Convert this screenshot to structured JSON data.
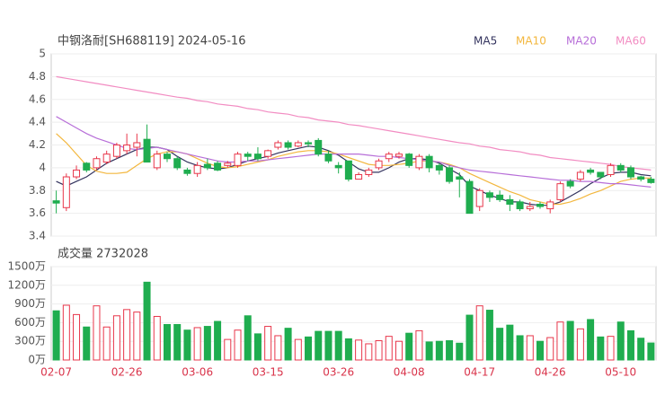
{
  "chart_data": [
    {
      "type": "candlestick",
      "title": "中钢洛耐[SH688119] 2024-05-16",
      "up_color": "#e8364a",
      "down_color": "#1fad4f",
      "open": [
        3.71,
        3.65,
        3.92,
        4.04,
        4.0,
        4.05,
        4.1,
        4.15,
        4.18,
        4.25,
        4.0,
        4.12,
        4.08,
        3.98,
        3.95,
        4.03,
        4.04,
        4.02,
        4.02,
        4.12,
        4.12,
        4.1,
        4.18,
        4.22,
        4.19,
        4.22,
        4.24,
        4.12,
        4.02,
        4.06,
        3.9,
        3.94,
        4.0,
        4.08,
        4.1,
        4.12,
        4.0,
        4.1,
        4.02,
        4.0,
        3.92,
        3.88,
        3.66,
        3.78,
        3.76,
        3.72,
        3.7,
        3.64,
        3.68,
        3.64,
        3.72,
        3.88,
        3.9,
        3.98,
        3.96,
        3.94,
        4.02,
        4.0,
        3.92,
        3.9
      ],
      "high": [
        3.8,
        3.95,
        4.02,
        4.05,
        4.1,
        4.15,
        4.22,
        4.3,
        4.3,
        4.38,
        4.15,
        4.14,
        4.1,
        4.0,
        4.05,
        4.08,
        4.06,
        4.06,
        4.14,
        4.14,
        4.18,
        4.16,
        4.24,
        4.24,
        4.24,
        4.24,
        4.26,
        4.15,
        4.05,
        4.06,
        3.96,
        4.0,
        4.08,
        4.14,
        4.14,
        4.13,
        4.12,
        4.12,
        4.04,
        4.02,
        3.96,
        3.9,
        3.82,
        3.8,
        3.8,
        3.76,
        3.72,
        3.7,
        3.7,
        3.72,
        3.88,
        3.9,
        3.98,
        4.0,
        3.96,
        4.04,
        4.04,
        4.02,
        3.93,
        3.92
      ],
      "low": [
        3.6,
        3.62,
        3.9,
        3.96,
        3.98,
        4.03,
        4.08,
        4.12,
        4.1,
        4.05,
        3.98,
        4.05,
        3.98,
        3.93,
        3.92,
        3.98,
        3.97,
        4.0,
        4.0,
        4.06,
        4.06,
        4.08,
        4.16,
        4.16,
        4.18,
        4.18,
        4.1,
        4.04,
        3.95,
        3.88,
        3.9,
        3.92,
        3.98,
        4.05,
        4.08,
        4.0,
        3.98,
        3.96,
        3.94,
        3.86,
        3.74,
        3.6,
        3.62,
        3.7,
        3.7,
        3.62,
        3.62,
        3.62,
        3.64,
        3.6,
        3.7,
        3.82,
        3.88,
        3.94,
        3.9,
        3.92,
        3.96,
        3.9,
        3.88,
        3.86
      ],
      "close": [
        3.69,
        3.92,
        3.98,
        3.98,
        4.08,
        4.12,
        4.2,
        4.2,
        4.22,
        4.05,
        4.12,
        4.08,
        4.0,
        3.95,
        4.02,
        4.0,
        3.98,
        4.04,
        4.12,
        4.1,
        4.08,
        4.15,
        4.22,
        4.18,
        4.22,
        4.21,
        4.12,
        4.06,
        4.0,
        3.9,
        3.94,
        3.98,
        4.06,
        4.12,
        4.12,
        4.02,
        4.1,
        4.0,
        3.98,
        3.88,
        3.9,
        3.6,
        3.8,
        3.74,
        3.72,
        3.68,
        3.64,
        3.66,
        3.66,
        3.7,
        3.86,
        3.84,
        3.96,
        3.96,
        3.92,
        4.02,
        3.98,
        3.92,
        3.9,
        3.87
      ],
      "series": [
        {
          "name": "MA5",
          "color": "#33335e",
          "values": [
            3.88,
            3.84,
            3.88,
            3.92,
            3.98,
            4.04,
            4.08,
            4.12,
            4.16,
            4.18,
            4.18,
            4.16,
            4.1,
            4.05,
            4.02,
            4.0,
            3.99,
            4.0,
            4.03,
            4.06,
            4.08,
            4.1,
            4.13,
            4.15,
            4.17,
            4.19,
            4.18,
            4.15,
            4.11,
            4.05,
            3.99,
            3.96,
            3.96,
            4.0,
            4.05,
            4.08,
            4.08,
            4.07,
            4.04,
            3.99,
            3.94,
            3.84,
            3.8,
            3.76,
            3.73,
            3.7,
            3.7,
            3.68,
            3.67,
            3.67,
            3.7,
            3.75,
            3.8,
            3.86,
            3.91,
            3.95,
            3.96,
            3.96,
            3.94,
            3.93
          ]
        },
        {
          "name": "MA10",
          "color": "#f3b73e",
          "values": [
            4.3,
            4.22,
            4.12,
            4.02,
            3.97,
            3.95,
            3.95,
            3.96,
            4.02,
            4.08,
            4.12,
            4.14,
            4.14,
            4.12,
            4.08,
            4.04,
            4.01,
            4.0,
            4.01,
            4.03,
            4.05,
            4.07,
            4.1,
            4.12,
            4.14,
            4.15,
            4.15,
            4.14,
            4.12,
            4.09,
            4.06,
            4.03,
            4.02,
            4.02,
            4.03,
            4.04,
            4.06,
            4.06,
            4.05,
            4.03,
            4.0,
            3.95,
            3.91,
            3.87,
            3.83,
            3.79,
            3.76,
            3.72,
            3.7,
            3.68,
            3.68,
            3.7,
            3.73,
            3.77,
            3.8,
            3.84,
            3.88,
            3.9,
            3.91,
            3.91
          ]
        },
        {
          "name": "MA20",
          "color": "#b76ed8",
          "values": [
            4.45,
            4.4,
            4.35,
            4.3,
            4.26,
            4.23,
            4.2,
            4.17,
            4.16,
            4.17,
            4.18,
            4.16,
            4.14,
            4.12,
            4.1,
            4.08,
            4.06,
            4.05,
            4.05,
            4.06,
            4.06,
            4.07,
            4.08,
            4.09,
            4.1,
            4.11,
            4.12,
            4.12,
            4.12,
            4.12,
            4.12,
            4.11,
            4.1,
            4.1,
            4.09,
            4.08,
            4.07,
            4.06,
            4.05,
            4.02,
            4.0,
            3.98,
            3.97,
            3.96,
            3.95,
            3.94,
            3.93,
            3.92,
            3.91,
            3.9,
            3.89,
            3.89,
            3.88,
            3.88,
            3.87,
            3.86,
            3.86,
            3.85,
            3.84,
            3.83
          ]
        },
        {
          "name": "MA60",
          "color": "#f28cc2",
          "values": [
            4.8,
            4.785,
            4.77,
            4.755,
            4.74,
            4.725,
            4.71,
            4.695,
            4.68,
            4.665,
            4.65,
            4.635,
            4.62,
            4.61,
            4.59,
            4.58,
            4.56,
            4.55,
            4.54,
            4.52,
            4.51,
            4.49,
            4.48,
            4.47,
            4.45,
            4.44,
            4.42,
            4.41,
            4.4,
            4.38,
            4.37,
            4.355,
            4.34,
            4.325,
            4.31,
            4.295,
            4.28,
            4.265,
            4.25,
            4.235,
            4.22,
            4.21,
            4.19,
            4.18,
            4.16,
            4.15,
            4.14,
            4.12,
            4.11,
            4.09,
            4.08,
            4.07,
            4.06,
            4.05,
            4.04,
            4.03,
            4.01,
            4.0,
            3.99,
            3.98
          ]
        }
      ],
      "ylim": [
        3.4,
        5
      ],
      "yticks": [
        5,
        4.8,
        4.6,
        4.4,
        4.2,
        4,
        3.8,
        3.6,
        3.4
      ]
    },
    {
      "type": "bar",
      "title": "成交量 2732028",
      "categories": [
        "02-07",
        null,
        null,
        null,
        null,
        null,
        null,
        "02-26",
        null,
        null,
        null,
        null,
        null,
        null,
        "03-06",
        null,
        null,
        null,
        null,
        null,
        null,
        "03-15",
        null,
        null,
        null,
        null,
        null,
        null,
        "03-26",
        null,
        null,
        null,
        null,
        null,
        null,
        "04-08",
        null,
        null,
        null,
        null,
        null,
        null,
        "04-17",
        null,
        null,
        null,
        null,
        null,
        null,
        "04-26",
        null,
        null,
        null,
        null,
        null,
        null,
        "05-10",
        null,
        null,
        null
      ],
      "values": [
        790,
        880,
        730,
        530,
        870,
        530,
        710,
        810,
        770,
        1250,
        700,
        570,
        570,
        480,
        520,
        540,
        620,
        330,
        480,
        710,
        420,
        540,
        390,
        510,
        330,
        370,
        460,
        460,
        460,
        340,
        320,
        260,
        310,
        380,
        300,
        430,
        470,
        290,
        300,
        310,
        270,
        720,
        870,
        800,
        510,
        560,
        390,
        390,
        300,
        360,
        610,
        620,
        500,
        650,
        370,
        380,
        610,
        470,
        350,
        273.2028
      ],
      "ylim": [
        0,
        1500
      ],
      "yticks": [
        {
          "value": 1500,
          "label": "1500万"
        },
        {
          "value": 1200,
          "label": "1200万"
        },
        {
          "value": 900,
          "label": "900万"
        },
        {
          "value": 600,
          "label": "600万"
        },
        {
          "value": 300,
          "label": "300万"
        },
        {
          "value": 0,
          "label": "0万"
        }
      ]
    }
  ]
}
